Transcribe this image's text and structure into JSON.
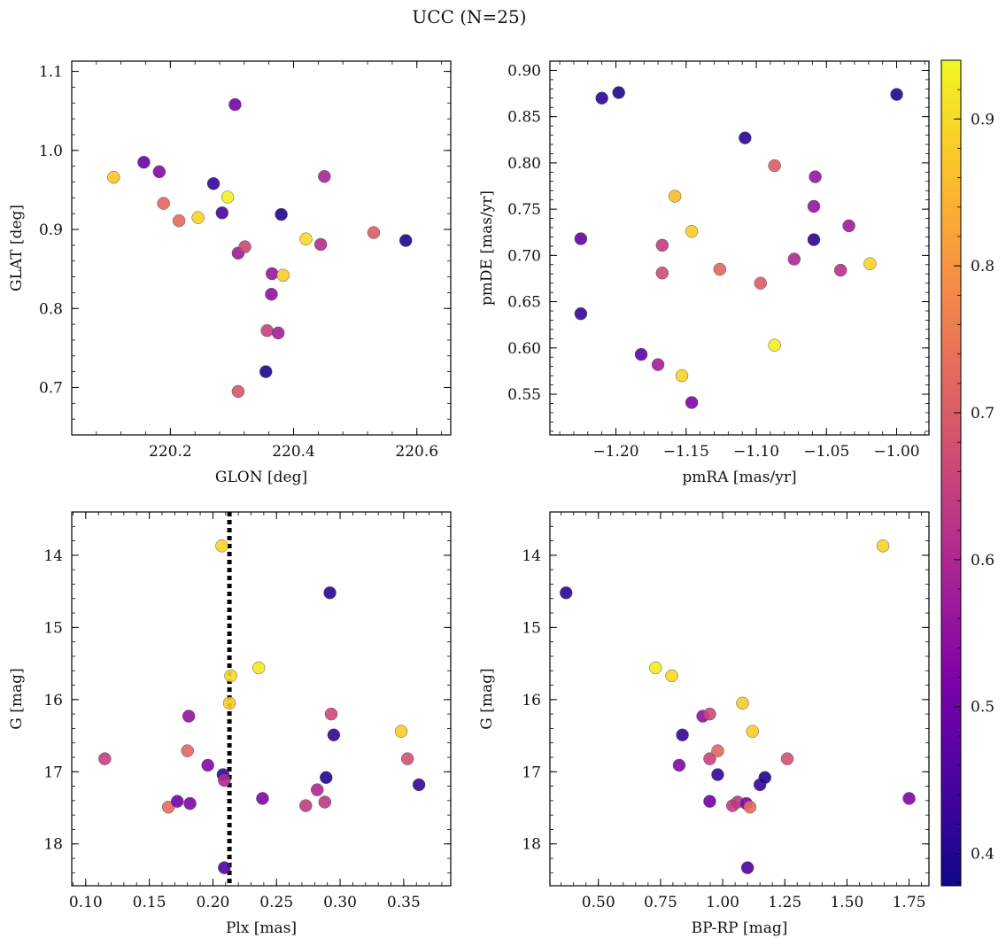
{
  "figure": {
    "title": "UCC (N=25)"
  },
  "colorbar": {
    "range": [
      0.378,
      0.94
    ],
    "ticks": [
      0.4,
      0.5,
      0.6,
      0.7,
      0.8,
      0.9
    ],
    "tick_labels": [
      "0.4",
      "0.5",
      "0.6",
      "0.7",
      "0.8",
      "0.9"
    ],
    "colormap": "plasma"
  },
  "chart_data": [
    {
      "type": "scatter",
      "title": "",
      "xlabel": "GLON [deg]",
      "ylabel": "GLAT [deg]",
      "xlim": [
        220.04,
        220.655
      ],
      "ylim": [
        0.64,
        1.113
      ],
      "y_inverted": false,
      "xticks": [
        220.2,
        220.4,
        220.6
      ],
      "xtick_labels": [
        "220.2",
        "220.4",
        "220.6"
      ],
      "yticks": [
        0.7,
        0.8,
        0.9,
        1.0,
        1.1
      ],
      "ytick_labels": [
        "0.7",
        "0.8",
        "0.9",
        "1.0",
        "1.1"
      ],
      "points": [
        {
          "x": 220.108,
          "y": 0.966,
          "c": 0.87
        },
        {
          "x": 220.157,
          "y": 0.985,
          "c": 0.49
        },
        {
          "x": 220.182,
          "y": 0.973,
          "c": 0.53
        },
        {
          "x": 220.189,
          "y": 0.933,
          "c": 0.72
        },
        {
          "x": 220.214,
          "y": 0.911,
          "c": 0.73
        },
        {
          "x": 220.245,
          "y": 0.915,
          "c": 0.89
        },
        {
          "x": 220.27,
          "y": 0.958,
          "c": 0.42
        },
        {
          "x": 220.284,
          "y": 0.921,
          "c": 0.44
        },
        {
          "x": 220.293,
          "y": 0.941,
          "c": 0.93
        },
        {
          "x": 220.305,
          "y": 1.058,
          "c": 0.51
        },
        {
          "x": 220.31,
          "y": 0.87,
          "c": 0.57
        },
        {
          "x": 220.31,
          "y": 0.695,
          "c": 0.69
        },
        {
          "x": 220.321,
          "y": 0.878,
          "c": 0.66
        },
        {
          "x": 220.355,
          "y": 0.72,
          "c": 0.39
        },
        {
          "x": 220.357,
          "y": 0.772,
          "c": 0.65
        },
        {
          "x": 220.364,
          "y": 0.818,
          "c": 0.55
        },
        {
          "x": 220.365,
          "y": 0.844,
          "c": 0.56
        },
        {
          "x": 220.375,
          "y": 0.769,
          "c": 0.58
        },
        {
          "x": 220.38,
          "y": 0.919,
          "c": 0.4
        },
        {
          "x": 220.383,
          "y": 0.842,
          "c": 0.88
        },
        {
          "x": 220.42,
          "y": 0.888,
          "c": 0.9
        },
        {
          "x": 220.444,
          "y": 0.881,
          "c": 0.61
        },
        {
          "x": 220.45,
          "y": 0.967,
          "c": 0.59
        },
        {
          "x": 220.53,
          "y": 0.896,
          "c": 0.7
        },
        {
          "x": 220.582,
          "y": 0.886,
          "c": 0.4
        }
      ]
    },
    {
      "type": "scatter",
      "title": "",
      "xlabel": "pmRA [mas/yr]",
      "ylabel": "pmDE [mas/yr]",
      "xlim": [
        -1.247,
        -0.977
      ],
      "ylim": [
        0.506,
        0.91
      ],
      "y_inverted": false,
      "xticks": [
        -1.2,
        -1.15,
        -1.1,
        -1.05,
        -1.0
      ],
      "xtick_labels": [
        "−1.20",
        "−1.15",
        "−1.10",
        "−1.05",
        "−1.00"
      ],
      "yticks": [
        0.55,
        0.6,
        0.65,
        0.7,
        0.75,
        0.8,
        0.85,
        0.9
      ],
      "ytick_labels": [
        "0.55",
        "0.60",
        "0.65",
        "0.70",
        "0.75",
        "0.80",
        "0.85",
        "0.90"
      ],
      "points": [
        {
          "x": -1.225,
          "y": 0.718,
          "c": 0.48
        },
        {
          "x": -1.225,
          "y": 0.637,
          "c": 0.42
        },
        {
          "x": -1.21,
          "y": 0.87,
          "c": 0.41
        },
        {
          "x": -1.198,
          "y": 0.876,
          "c": 0.4
        },
        {
          "x": -1.182,
          "y": 0.593,
          "c": 0.47
        },
        {
          "x": -1.17,
          "y": 0.582,
          "c": 0.58
        },
        {
          "x": -1.167,
          "y": 0.711,
          "c": 0.64
        },
        {
          "x": -1.167,
          "y": 0.681,
          "c": 0.67
        },
        {
          "x": -1.158,
          "y": 0.764,
          "c": 0.86
        },
        {
          "x": -1.153,
          "y": 0.57,
          "c": 0.89
        },
        {
          "x": -1.146,
          "y": 0.726,
          "c": 0.88
        },
        {
          "x": -1.146,
          "y": 0.541,
          "c": 0.52
        },
        {
          "x": -1.126,
          "y": 0.685,
          "c": 0.72
        },
        {
          "x": -1.108,
          "y": 0.827,
          "c": 0.41
        },
        {
          "x": -1.097,
          "y": 0.67,
          "c": 0.7
        },
        {
          "x": -1.087,
          "y": 0.797,
          "c": 0.7
        },
        {
          "x": -1.087,
          "y": 0.603,
          "c": 0.93
        },
        {
          "x": -1.073,
          "y": 0.696,
          "c": 0.6
        },
        {
          "x": -1.059,
          "y": 0.717,
          "c": 0.41
        },
        {
          "x": -1.059,
          "y": 0.753,
          "c": 0.56
        },
        {
          "x": -1.058,
          "y": 0.785,
          "c": 0.56
        },
        {
          "x": -1.04,
          "y": 0.684,
          "c": 0.62
        },
        {
          "x": -1.034,
          "y": 0.732,
          "c": 0.57
        },
        {
          "x": -1.019,
          "y": 0.691,
          "c": 0.89
        },
        {
          "x": -1.0,
          "y": 0.874,
          "c": 0.4
        }
      ]
    },
    {
      "type": "scatter",
      "title": "",
      "xlabel": "Plx [mas]",
      "ylabel": "G [mag]",
      "xlim": [
        0.089,
        0.387
      ],
      "ylim": [
        18.58,
        13.4
      ],
      "y_inverted": true,
      "xticks": [
        0.1,
        0.15,
        0.2,
        0.25,
        0.3,
        0.35
      ],
      "xtick_labels": [
        "0.10",
        "0.15",
        "0.20",
        "0.25",
        "0.30",
        "0.35"
      ],
      "yticks": [
        14,
        15,
        16,
        17,
        18
      ],
      "ytick_labels": [
        "14",
        "15",
        "16",
        "17",
        "18"
      ],
      "reference_line": {
        "x": 0.213,
        "style": "dotted",
        "color": "#000000"
      },
      "points": [
        {
          "x": 0.115,
          "y": 16.82,
          "c": 0.65
        },
        {
          "x": 0.165,
          "y": 17.49,
          "c": 0.73
        },
        {
          "x": 0.172,
          "y": 17.41,
          "c": 0.5
        },
        {
          "x": 0.18,
          "y": 16.71,
          "c": 0.72
        },
        {
          "x": 0.181,
          "y": 16.23,
          "c": 0.55
        },
        {
          "x": 0.182,
          "y": 17.44,
          "c": 0.52
        },
        {
          "x": 0.196,
          "y": 16.91,
          "c": 0.53
        },
        {
          "x": 0.207,
          "y": 13.87,
          "c": 0.89
        },
        {
          "x": 0.208,
          "y": 17.04,
          "c": 0.42
        },
        {
          "x": 0.209,
          "y": 17.12,
          "c": 0.6
        },
        {
          "x": 0.209,
          "y": 18.33,
          "c": 0.45
        },
        {
          "x": 0.213,
          "y": 16.05,
          "c": 0.88
        },
        {
          "x": 0.214,
          "y": 15.67,
          "c": 0.9
        },
        {
          "x": 0.236,
          "y": 15.56,
          "c": 0.92
        },
        {
          "x": 0.239,
          "y": 17.37,
          "c": 0.52
        },
        {
          "x": 0.273,
          "y": 17.47,
          "c": 0.64
        },
        {
          "x": 0.282,
          "y": 17.25,
          "c": 0.6
        },
        {
          "x": 0.288,
          "y": 17.42,
          "c": 0.63
        },
        {
          "x": 0.289,
          "y": 17.08,
          "c": 0.4
        },
        {
          "x": 0.292,
          "y": 14.52,
          "c": 0.41
        },
        {
          "x": 0.293,
          "y": 16.2,
          "c": 0.66
        },
        {
          "x": 0.295,
          "y": 16.49,
          "c": 0.42
        },
        {
          "x": 0.348,
          "y": 16.44,
          "c": 0.88
        },
        {
          "x": 0.353,
          "y": 16.82,
          "c": 0.68
        },
        {
          "x": 0.362,
          "y": 17.18,
          "c": 0.42
        }
      ]
    },
    {
      "type": "scatter",
      "title": "",
      "xlabel": "BP-RP [mag]",
      "ylabel": "G [mag]",
      "xlim": [
        0.305,
        1.83
      ],
      "ylim": [
        18.58,
        13.4
      ],
      "y_inverted": true,
      "xticks": [
        0.5,
        0.75,
        1.0,
        1.25,
        1.5,
        1.75
      ],
      "xtick_labels": [
        "0.50",
        "0.75",
        "1.00",
        "1.25",
        "1.50",
        "1.75"
      ],
      "yticks": [
        14,
        15,
        16,
        17,
        18
      ],
      "ytick_labels": [
        "14",
        "15",
        "16",
        "17",
        "18"
      ],
      "points": [
        {
          "x": 0.37,
          "y": 14.52,
          "c": 0.41
        },
        {
          "x": 0.73,
          "y": 15.56,
          "c": 0.92
        },
        {
          "x": 0.795,
          "y": 15.67,
          "c": 0.9
        },
        {
          "x": 0.825,
          "y": 16.91,
          "c": 0.53
        },
        {
          "x": 0.838,
          "y": 16.49,
          "c": 0.42
        },
        {
          "x": 0.92,
          "y": 16.23,
          "c": 0.55
        },
        {
          "x": 0.948,
          "y": 16.2,
          "c": 0.66
        },
        {
          "x": 0.948,
          "y": 16.82,
          "c": 0.65
        },
        {
          "x": 0.948,
          "y": 17.41,
          "c": 0.5
        },
        {
          "x": 0.98,
          "y": 16.71,
          "c": 0.72
        },
        {
          "x": 0.98,
          "y": 17.04,
          "c": 0.42
        },
        {
          "x": 1.04,
          "y": 17.47,
          "c": 0.64
        },
        {
          "x": 1.06,
          "y": 17.42,
          "c": 0.63
        },
        {
          "x": 1.08,
          "y": 16.05,
          "c": 0.88
        },
        {
          "x": 1.095,
          "y": 17.44,
          "c": 0.52
        },
        {
          "x": 1.1,
          "y": 18.33,
          "c": 0.45
        },
        {
          "x": 1.11,
          "y": 17.49,
          "c": 0.73
        },
        {
          "x": 1.12,
          "y": 16.44,
          "c": 0.88
        },
        {
          "x": 1.15,
          "y": 17.18,
          "c": 0.42
        },
        {
          "x": 1.17,
          "y": 17.08,
          "c": 0.4
        },
        {
          "x": 1.26,
          "y": 16.82,
          "c": 0.68
        },
        {
          "x": 1.645,
          "y": 13.87,
          "c": 0.89
        },
        {
          "x": 1.75,
          "y": 17.37,
          "c": 0.52
        }
      ]
    }
  ]
}
